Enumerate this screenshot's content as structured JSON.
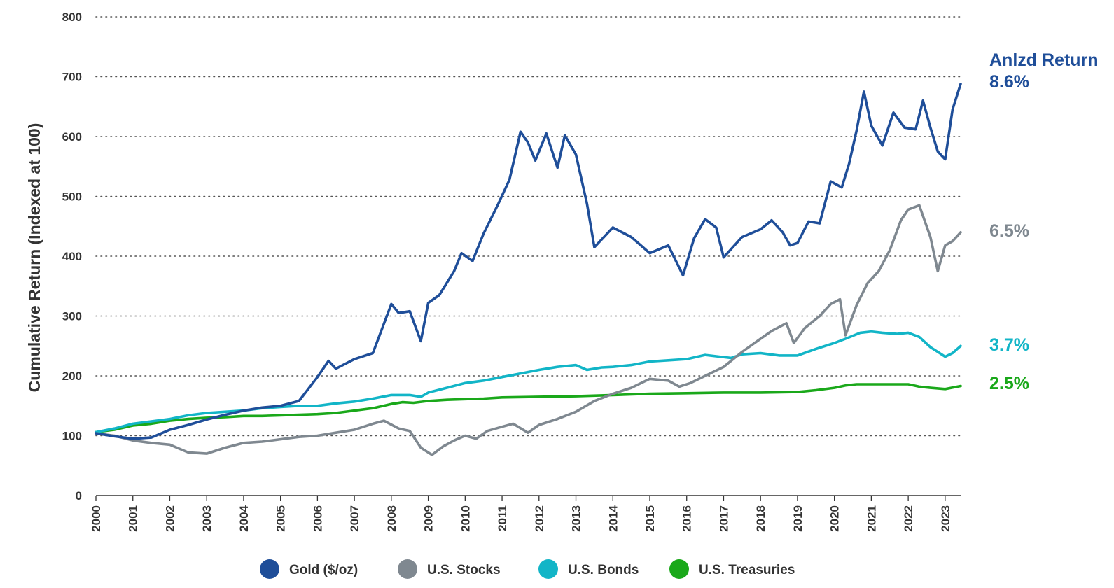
{
  "chart_data": {
    "type": "line",
    "ylabel": "Cumulative Return (Indexed at 100)",
    "xlabel": "",
    "ylim": [
      0,
      800
    ],
    "xlim": [
      2000,
      2023.42
    ],
    "y_ticks": [
      "0",
      "100",
      "200",
      "300",
      "400",
      "500",
      "600",
      "700",
      "800"
    ],
    "x_ticks": [
      "2000",
      "2001",
      "2002",
      "2003",
      "2004",
      "2005",
      "2006",
      "2007",
      "2008",
      "2009",
      "2010",
      "2011",
      "2012",
      "2013",
      "2014",
      "2015",
      "2016",
      "2017",
      "2018",
      "2019",
      "2020",
      "2021",
      "2022",
      "2023"
    ],
    "grid": "horizontal dotted",
    "legend_position": "bottom",
    "annotation_title": "Anlzd Return",
    "series": [
      {
        "name": "Gold ($/oz)",
        "color": "#1f4e99",
        "return_label": "8.6%",
        "x": [
          2000,
          2000.5,
          2001,
          2001.5,
          2002,
          2002.5,
          2003,
          2003.5,
          2004,
          2004.5,
          2005,
          2005.5,
          2006,
          2006.3,
          2006.5,
          2007,
          2007.5,
          2008,
          2008.2,
          2008.5,
          2008.8,
          2009,
          2009.3,
          2009.7,
          2009.9,
          2010.2,
          2010.5,
          2010.9,
          2011.2,
          2011.5,
          2011.7,
          2011.9,
          2012.2,
          2012.5,
          2012.7,
          2013,
          2013.3,
          2013.5,
          2014,
          2014.5,
          2015,
          2015.5,
          2015.9,
          2016.2,
          2016.5,
          2016.8,
          2017,
          2017.5,
          2018,
          2018.3,
          2018.6,
          2018.8,
          2019,
          2019.3,
          2019.6,
          2019.9,
          2020.2,
          2020.4,
          2020.6,
          2020.8,
          2021,
          2021.3,
          2021.6,
          2021.9,
          2022.2,
          2022.4,
          2022.6,
          2022.8,
          2023,
          2023.2,
          2023.42
        ],
        "values": [
          104,
          99,
          95,
          97,
          110,
          118,
          127,
          135,
          142,
          147,
          150,
          158,
          198,
          225,
          212,
          228,
          238,
          320,
          305,
          308,
          258,
          322,
          335,
          375,
          405,
          392,
          438,
          488,
          528,
          608,
          590,
          560,
          605,
          548,
          602,
          570,
          488,
          415,
          448,
          432,
          405,
          418,
          368,
          430,
          462,
          448,
          398,
          432,
          445,
          460,
          440,
          418,
          422,
          458,
          455,
          525,
          515,
          555,
          610,
          675,
          618,
          585,
          640,
          615,
          612,
          660,
          615,
          575,
          562,
          645,
          688
        ]
      },
      {
        "name": "U.S. Stocks",
        "color": "#7f8890",
        "return_label": "6.5%",
        "x": [
          2000,
          2000.5,
          2001,
          2001.5,
          2002,
          2002.5,
          2003,
          2003.5,
          2004,
          2004.5,
          2005,
          2005.5,
          2006,
          2006.5,
          2007,
          2007.5,
          2007.8,
          2008.2,
          2008.5,
          2008.8,
          2009.1,
          2009.4,
          2009.7,
          2010,
          2010.3,
          2010.6,
          2011,
          2011.3,
          2011.7,
          2012,
          2012.5,
          2013,
          2013.5,
          2014,
          2014.5,
          2015,
          2015.5,
          2015.8,
          2016.1,
          2016.5,
          2017,
          2017.5,
          2018,
          2018.3,
          2018.7,
          2018.9,
          2019.2,
          2019.6,
          2019.9,
          2020.15,
          2020.3,
          2020.6,
          2020.9,
          2021.2,
          2021.5,
          2021.8,
          2022,
          2022.3,
          2022.6,
          2022.8,
          2023,
          2023.2,
          2023.42
        ],
        "values": [
          104,
          100,
          92,
          88,
          85,
          72,
          70,
          80,
          88,
          90,
          94,
          98,
          100,
          105,
          110,
          120,
          125,
          112,
          108,
          80,
          68,
          82,
          92,
          100,
          95,
          108,
          115,
          120,
          105,
          118,
          128,
          140,
          158,
          170,
          180,
          195,
          192,
          182,
          188,
          200,
          215,
          240,
          262,
          275,
          288,
          255,
          280,
          300,
          320,
          328,
          268,
          318,
          355,
          375,
          410,
          460,
          478,
          485,
          432,
          375,
          418,
          425,
          440
        ]
      },
      {
        "name": "U.S. Bonds",
        "color": "#12b5c7",
        "return_label": "3.7%",
        "x": [
          2000,
          2000.5,
          2001,
          2001.5,
          2002,
          2002.5,
          2003,
          2003.5,
          2004,
          2004.5,
          2005,
          2005.5,
          2006,
          2006.5,
          2007,
          2007.5,
          2008,
          2008.5,
          2008.8,
          2009,
          2009.5,
          2010,
          2010.5,
          2011,
          2011.5,
          2012,
          2012.5,
          2013,
          2013.3,
          2013.7,
          2014,
          2014.5,
          2015,
          2015.5,
          2016,
          2016.5,
          2016.9,
          2017.2,
          2017.5,
          2018,
          2018.5,
          2019,
          2019.5,
          2020,
          2020.3,
          2020.7,
          2021,
          2021.3,
          2021.7,
          2022,
          2022.3,
          2022.6,
          2022.8,
          2023,
          2023.2,
          2023.42
        ],
        "values": [
          106,
          112,
          120,
          124,
          128,
          134,
          138,
          140,
          142,
          146,
          148,
          150,
          150,
          154,
          157,
          162,
          168,
          168,
          165,
          172,
          180,
          188,
          192,
          198,
          204,
          210,
          215,
          218,
          210,
          214,
          215,
          218,
          224,
          226,
          228,
          235,
          232,
          230,
          236,
          238,
          234,
          234,
          245,
          255,
          262,
          272,
          274,
          272,
          270,
          272,
          265,
          248,
          240,
          232,
          238,
          250
        ]
      },
      {
        "name": "U.S. Treasuries",
        "color": "#1aa81a",
        "return_label": "2.5%",
        "x": [
          2000,
          2000.5,
          2001,
          2001.5,
          2002,
          2002.5,
          2003,
          2003.5,
          2004,
          2004.5,
          2005,
          2005.5,
          2006,
          2006.5,
          2007,
          2007.5,
          2008,
          2008.3,
          2008.6,
          2009,
          2009.5,
          2010,
          2010.5,
          2011,
          2012,
          2013,
          2014,
          2015,
          2016,
          2017,
          2018,
          2019,
          2019.5,
          2020,
          2020.3,
          2020.6,
          2021,
          2021.5,
          2022,
          2022.3,
          2022.6,
          2023,
          2023.42
        ],
        "values": [
          106,
          110,
          117,
          120,
          125,
          128,
          130,
          131,
          133,
          133,
          134,
          135,
          136,
          138,
          142,
          146,
          153,
          156,
          155,
          158,
          160,
          161,
          162,
          164,
          165,
          166,
          168,
          170,
          171,
          172,
          172,
          173,
          176,
          180,
          184,
          186,
          186,
          186,
          186,
          182,
          180,
          178,
          183
        ]
      }
    ]
  }
}
